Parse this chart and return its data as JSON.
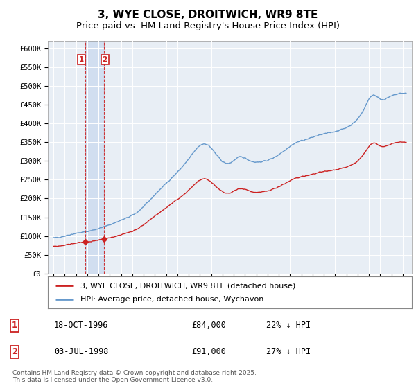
{
  "title": "3, WYE CLOSE, DROITWICH, WR9 8TE",
  "subtitle": "Price paid vs. HM Land Registry's House Price Index (HPI)",
  "ylim": [
    0,
    620000
  ],
  "yticks": [
    0,
    50000,
    100000,
    150000,
    200000,
    250000,
    300000,
    350000,
    400000,
    450000,
    500000,
    550000,
    600000
  ],
  "ytick_labels": [
    "£0",
    "£50K",
    "£100K",
    "£150K",
    "£200K",
    "£250K",
    "£300K",
    "£350K",
    "£400K",
    "£450K",
    "£500K",
    "£550K",
    "£600K"
  ],
  "background_color": "#ffffff",
  "plot_bg_color": "#e8eef5",
  "grid_color": "#ffffff",
  "hpi_color": "#6699cc",
  "price_color": "#cc2222",
  "shade_color": "#c8d8ee",
  "sale1_date": "18-OCT-1996",
  "sale1_price": 84000,
  "sale1_price_str": "£84,000",
  "sale1_hpi_diff": "22% ↓ HPI",
  "sale2_date": "03-JUL-1998",
  "sale2_price": 91000,
  "sale2_price_str": "£91,000",
  "sale2_hpi_diff": "27% ↓ HPI",
  "legend_house": "3, WYE CLOSE, DROITWICH, WR9 8TE (detached house)",
  "legend_hpi": "HPI: Average price, detached house, Wychavon",
  "footnote": "Contains HM Land Registry data © Crown copyright and database right 2025.\nThis data is licensed under the Open Government Licence v3.0.",
  "title_fontsize": 11,
  "subtitle_fontsize": 9.5,
  "tick_fontsize": 7.5,
  "sale1_x": 1996.8,
  "sale2_x": 1998.5,
  "xlim_left": 1993.5,
  "xlim_right": 2025.8
}
